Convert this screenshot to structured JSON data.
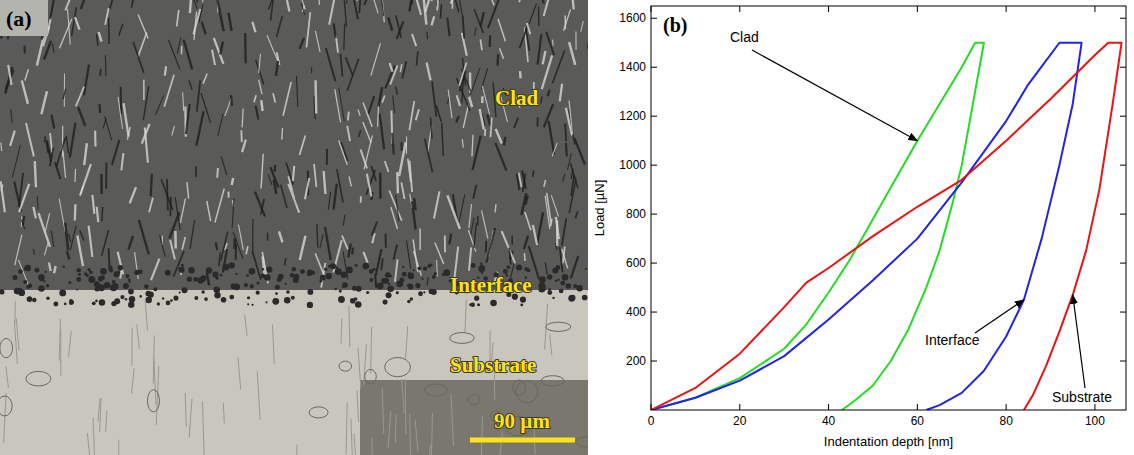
{
  "micrograph": {
    "panel_label": "(a)",
    "regions": [
      "Clad",
      "Interface",
      "Substrate"
    ],
    "scale_bar": "90 µm"
  },
  "chart_data": {
    "type": "line",
    "panel_label": "(b)",
    "xlabel": "Indentation depth [nm]",
    "ylabel": "Load [µN]",
    "xlim": [
      0,
      107
    ],
    "xticks": [
      0,
      20,
      40,
      60,
      80,
      100
    ],
    "ylim": [
      0,
      1650
    ],
    "yticks": [
      200,
      400,
      600,
      800,
      1000,
      1200,
      1400,
      1600
    ],
    "series": [
      {
        "name": "Clad",
        "color": "#22dd22",
        "x": [
          0,
          10,
          20,
          30,
          35,
          40,
          45,
          50,
          55,
          60,
          65,
          70,
          73,
          75,
          73,
          70,
          68,
          65,
          62,
          58,
          54,
          50,
          46,
          43
        ],
        "values": [
          0,
          50,
          130,
          250,
          350,
          480,
          620,
          780,
          940,
          1100,
          1250,
          1400,
          1500,
          1500,
          1300,
          1000,
          850,
          650,
          500,
          330,
          200,
          100,
          40,
          0
        ]
      },
      {
        "name": "Interface",
        "color": "#2222ee",
        "x": [
          0,
          10,
          20,
          30,
          40,
          50,
          60,
          70,
          80,
          85,
          92,
          97,
          95,
          92,
          88,
          84,
          80,
          75,
          70,
          65,
          62
        ],
        "values": [
          0,
          50,
          120,
          220,
          370,
          530,
          700,
          930,
          1180,
          1330,
          1500,
          1500,
          1250,
          1000,
          700,
          450,
          300,
          160,
          70,
          20,
          0
        ]
      },
      {
        "name": "Substrate",
        "color": "#ee1111",
        "x": [
          0,
          10,
          20,
          30,
          35,
          40,
          50,
          60,
          70,
          80,
          90,
          100,
          103,
          106,
          104,
          101,
          98,
          95,
          92,
          89,
          86,
          84
        ],
        "values": [
          0,
          90,
          230,
          420,
          520,
          580,
          710,
          830,
          940,
          1100,
          1270,
          1450,
          1500,
          1500,
          1250,
          900,
          650,
          470,
          320,
          180,
          60,
          0
        ]
      }
    ]
  }
}
